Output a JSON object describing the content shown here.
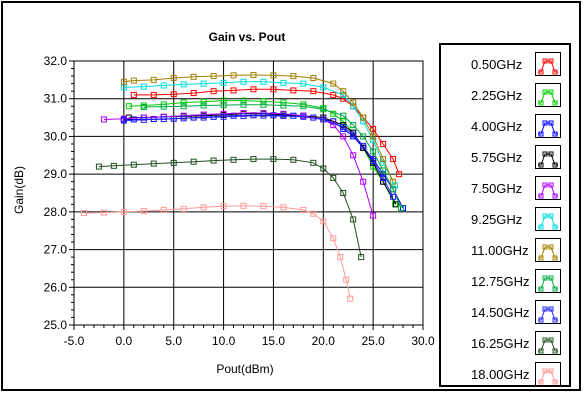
{
  "chart_data": {
    "type": "line",
    "title": "Gain vs. Pout",
    "xlabel": "Pout(dBm)",
    "ylabel": "Gain(dB)",
    "xlim": [
      -5.0,
      30.0
    ],
    "ylim": [
      25.0,
      32.0
    ],
    "x_ticks": [
      "-5.0",
      "0.0",
      "5.0",
      "10.0",
      "15.0",
      "20.0",
      "25.0",
      "30.0"
    ],
    "y_ticks": [
      "25.0",
      "26.0",
      "27.0",
      "28.0",
      "29.0",
      "30.0",
      "31.0",
      "32.0"
    ],
    "grid": true,
    "legend_position": "right",
    "series": [
      {
        "name": "0.50GHz",
        "color": "#ff0000",
        "x": [
          1,
          3,
          5,
          7,
          9,
          11,
          13,
          15,
          17,
          19,
          21,
          22,
          23,
          24,
          25,
          26,
          27,
          27.6
        ],
        "y": [
          31.1,
          31.1,
          31.12,
          31.15,
          31.2,
          31.22,
          31.25,
          31.25,
          31.22,
          31.2,
          31.1,
          31.0,
          30.8,
          30.5,
          30.2,
          29.8,
          29.4,
          29.0
        ]
      },
      {
        "name": "2.25GHz",
        "color": "#00cc00",
        "x": [
          0.5,
          2,
          4,
          6,
          8,
          10,
          12,
          14,
          16,
          18,
          20,
          21,
          22,
          23,
          24,
          25,
          26,
          27.2
        ],
        "y": [
          30.8,
          30.82,
          30.85,
          30.9,
          30.92,
          30.95,
          30.95,
          30.93,
          30.9,
          30.85,
          30.75,
          30.6,
          30.4,
          30.1,
          29.7,
          29.2,
          28.8,
          28.2
        ]
      },
      {
        "name": "4.00GHz",
        "color": "#0000ff",
        "x": [
          0,
          1,
          3,
          5,
          7,
          9,
          11,
          13,
          15,
          17,
          19,
          21,
          22,
          23,
          24,
          25,
          26,
          27,
          28
        ],
        "y": [
          30.45,
          30.45,
          30.46,
          30.47,
          30.5,
          30.52,
          30.55,
          30.56,
          30.56,
          30.55,
          30.5,
          30.4,
          30.2,
          30.0,
          29.7,
          29.4,
          29.0,
          28.6,
          28.1
        ]
      },
      {
        "name": "5.75GHz",
        "color": "#000000",
        "x": [
          0.5,
          2,
          4,
          6,
          8,
          10,
          12,
          14,
          16,
          18,
          20,
          22,
          23,
          24,
          25,
          26,
          27.3
        ],
        "y": [
          30.5,
          30.5,
          30.52,
          30.53,
          30.55,
          30.57,
          30.6,
          30.6,
          30.58,
          30.55,
          30.5,
          30.3,
          30.1,
          29.7,
          29.3,
          28.8,
          28.2
        ]
      },
      {
        "name": "7.50GHz",
        "color": "#b000ff",
        "x": [
          -2,
          0,
          2,
          4,
          6,
          8,
          10,
          12,
          14,
          16,
          18,
          20,
          21,
          22,
          23,
          24,
          25
        ],
        "y": [
          30.45,
          30.47,
          30.5,
          30.52,
          30.55,
          30.58,
          30.6,
          30.62,
          30.62,
          30.6,
          30.55,
          30.45,
          30.3,
          30.0,
          29.5,
          28.8,
          27.9
        ]
      },
      {
        "name": "9.25GHz",
        "color": "#00dddd",
        "x": [
          0,
          2,
          4,
          6,
          8,
          10,
          12,
          14,
          16,
          18,
          20,
          22,
          23,
          24,
          25,
          26,
          27.2
        ],
        "y": [
          31.3,
          31.32,
          31.35,
          31.38,
          31.4,
          31.42,
          31.45,
          31.45,
          31.42,
          31.4,
          31.3,
          31.1,
          30.8,
          30.4,
          29.9,
          29.3,
          28.7
        ]
      },
      {
        "name": "11.00GHz",
        "color": "#a08000",
        "x": [
          0,
          1,
          3,
          5,
          7,
          9,
          11,
          13,
          15,
          17,
          19,
          21,
          22,
          23,
          24,
          25,
          26,
          27
        ],
        "y": [
          31.45,
          31.48,
          31.5,
          31.55,
          31.58,
          31.6,
          31.62,
          31.63,
          31.62,
          31.6,
          31.55,
          31.4,
          31.2,
          30.9,
          30.5,
          30.0,
          29.4,
          28.8
        ]
      },
      {
        "name": "12.75GHz",
        "color": "#00aa44",
        "x": [
          2,
          4,
          6,
          8,
          10,
          12,
          14,
          16,
          18,
          20,
          22,
          23,
          24,
          25,
          26,
          27,
          27.8
        ],
        "y": [
          30.78,
          30.79,
          30.8,
          30.82,
          30.83,
          30.84,
          30.84,
          30.82,
          30.8,
          30.72,
          30.55,
          30.3,
          30.0,
          29.6,
          29.1,
          28.6,
          28.1
        ]
      },
      {
        "name": "14.50GHz",
        "color": "#2020ff",
        "x": [
          0,
          2,
          4,
          6,
          8,
          10,
          12,
          14,
          16,
          18,
          20,
          22,
          23,
          24,
          25,
          26,
          27
        ],
        "y": [
          30.42,
          30.44,
          30.46,
          30.48,
          30.5,
          30.52,
          30.54,
          30.55,
          30.54,
          30.52,
          30.45,
          30.25,
          30.05,
          29.75,
          29.35,
          28.9,
          28.4
        ]
      },
      {
        "name": "16.25GHz",
        "color": "#205020",
        "x": [
          -2.5,
          -1,
          1,
          3,
          5,
          7,
          9,
          11,
          13,
          15,
          17,
          19,
          20,
          21,
          22,
          23,
          23.8
        ],
        "y": [
          29.2,
          29.22,
          29.25,
          29.28,
          29.3,
          29.33,
          29.36,
          29.38,
          29.4,
          29.4,
          29.38,
          29.3,
          29.15,
          28.9,
          28.5,
          27.8,
          26.8
        ]
      },
      {
        "name": "18.00GHz",
        "color": "#ff9999",
        "x": [
          -4,
          -2,
          0,
          2,
          4,
          6,
          8,
          10,
          12,
          14,
          16,
          18,
          19,
          20,
          21,
          21.7,
          22.3,
          22.7
        ],
        "y": [
          27.97,
          27.98,
          28.0,
          28.02,
          28.05,
          28.08,
          28.12,
          28.15,
          28.16,
          28.15,
          28.12,
          28.05,
          27.95,
          27.75,
          27.3,
          26.8,
          26.2,
          25.7
        ]
      }
    ]
  }
}
